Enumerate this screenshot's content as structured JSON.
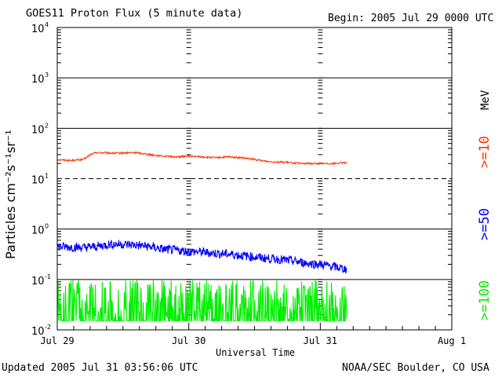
{
  "chart_data": {
    "type": "line",
    "title": "GOES11 Proton Flux (5 minute data)",
    "begin_label": "Begin: 2005 Jul 29 0000 UTC",
    "xlabel": "Universal Time",
    "ylabel": "Particles cm⁻²s⁻¹sr⁻¹",
    "x_tick_labels": [
      "Jul 29",
      "Jul 30",
      "Jul 31",
      "Aug 1"
    ],
    "x_range_days": [
      0,
      3
    ],
    "yscale": "log",
    "ylim": [
      0.01,
      10000
    ],
    "y_tick_labels": [
      {
        "base": "10",
        "exp": "-2"
      },
      {
        "base": "10",
        "exp": "-1"
      },
      {
        "base": "10",
        "exp": "0"
      },
      {
        "base": "10",
        "exp": "1"
      },
      {
        "base": "10",
        "exp": "2"
      },
      {
        "base": "10",
        "exp": "3"
      },
      {
        "base": "10",
        "exp": "4"
      }
    ],
    "threshold_line": {
      "value": 10,
      "style": "dashed"
    },
    "energy_unit": "MeV",
    "series": [
      {
        "name": ">=10",
        "color": "#ff3300",
        "x_days": [
          0,
          0.1,
          0.2,
          0.25,
          0.3,
          0.45,
          0.6,
          0.75,
          0.9,
          1.0,
          1.1,
          1.2,
          1.3,
          1.4,
          1.5,
          1.6,
          1.75,
          1.85,
          2.0,
          2.1,
          2.2
        ],
        "values": [
          24,
          23,
          24,
          30,
          33,
          32,
          33,
          29,
          27,
          28,
          27,
          26,
          27,
          26,
          24,
          22,
          21,
          20,
          20,
          20,
          21
        ]
      },
      {
        "name": ">=50",
        "color": "#0000ff",
        "x_days": [
          0,
          0.1,
          0.2,
          0.3,
          0.4,
          0.5,
          0.6,
          0.7,
          0.8,
          0.9,
          1.0,
          1.1,
          1.2,
          1.3,
          1.4,
          1.5,
          1.6,
          1.7,
          1.8,
          1.9,
          2.0,
          2.1,
          2.2
        ],
        "values": [
          0.45,
          0.44,
          0.43,
          0.45,
          0.5,
          0.5,
          0.48,
          0.45,
          0.4,
          0.38,
          0.36,
          0.35,
          0.33,
          0.32,
          0.3,
          0.28,
          0.26,
          0.25,
          0.23,
          0.21,
          0.2,
          0.18,
          0.16
        ]
      },
      {
        "name": ">=100",
        "color": "#00ee00",
        "x_days": [
          0,
          0.5,
          1.0,
          1.5,
          2.0,
          2.2
        ],
        "values": [
          0.07,
          0.07,
          0.06,
          0.06,
          0.06,
          0.06
        ],
        "range": [
          0.015,
          0.1
        ]
      }
    ]
  },
  "footer": {
    "updated": "Updated 2005 Jul 31 03:56:06 UTC",
    "credit": "NOAA/SEC Boulder, CO USA"
  }
}
